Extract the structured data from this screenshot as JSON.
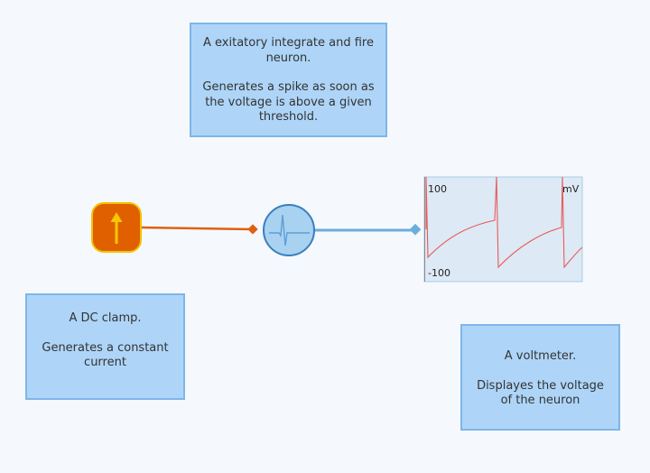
{
  "notes": {
    "neuron": {
      "title": "A exitatory integrate and fire neuron.",
      "description": "Generates a spike as soon as the voltage is above a given threshold."
    },
    "clamp": {
      "title": "A DC clamp.",
      "description": "Generates a constant current"
    },
    "voltmeter": {
      "title": "A voltmeter.",
      "description": "Displayes the voltage of the neuron"
    }
  },
  "voltmeter_plot": {
    "y_max_label": "100",
    "y_min_label": "-100",
    "unit_label": "mV"
  },
  "colors": {
    "clamp_fill": "#e06000",
    "clamp_border": "#f3c300",
    "clamp_arrow": "#f6c800",
    "clamp_wire": "#e06010",
    "neuron_fill": "#a9d2f0",
    "neuron_border": "#3a7fc0",
    "neuron_wire": "#6aaedb",
    "trace": "#e85a5a",
    "plot_bg": "#dde9f5",
    "plot_border": "#a9cbe8",
    "note_bg": "#aed5f8",
    "note_border": "#7eb6e8"
  }
}
